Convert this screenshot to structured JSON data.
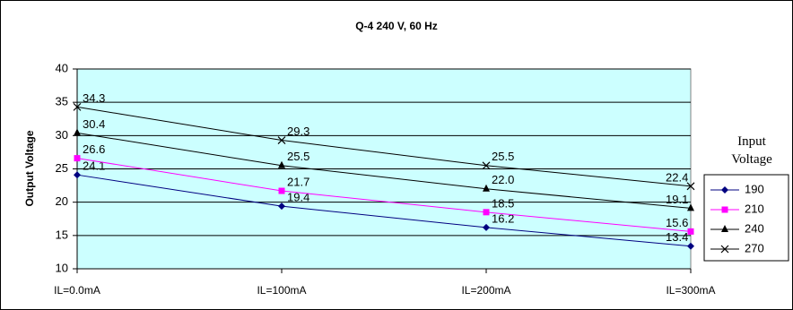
{
  "chart_data": {
    "type": "line",
    "title": "Q-4 240 V, 60 Hz",
    "y_label": "Output Voltage",
    "legend_title": "Input Voltage",
    "categories": [
      "IL=0.0mA",
      "IL=100mA",
      "IL=200mA",
      "IL=300mA"
    ],
    "series": [
      {
        "name": "190",
        "color": "#000080",
        "marker": "diamond",
        "values": [
          24.1,
          19.4,
          16.2,
          13.4
        ],
        "value_labels": [
          "24.1",
          "19.4",
          "16.2",
          "13.4"
        ]
      },
      {
        "name": "210",
        "color": "#ff00ff",
        "marker": "square",
        "values": [
          26.6,
          21.7,
          18.5,
          15.6
        ],
        "value_labels": [
          "26.6",
          "21.7",
          "18.5",
          "15.6"
        ]
      },
      {
        "name": "240",
        "color": "#000000",
        "marker": "triangle",
        "values": [
          30.4,
          25.5,
          22.0,
          19.1
        ],
        "value_labels": [
          "30.4",
          "25.5",
          "22.0",
          "19.1"
        ]
      },
      {
        "name": "270",
        "color": "#000000",
        "marker": "x",
        "values": [
          34.3,
          29.3,
          25.5,
          22.4
        ],
        "value_labels": [
          "34.3",
          "29.3",
          "25.5",
          "22.4"
        ]
      }
    ],
    "ylim": [
      10,
      40
    ],
    "yticks": [
      10,
      15,
      20,
      25,
      30,
      35,
      40
    ],
    "grid": true,
    "plot_background": "#ccffff",
    "legend": "right"
  }
}
